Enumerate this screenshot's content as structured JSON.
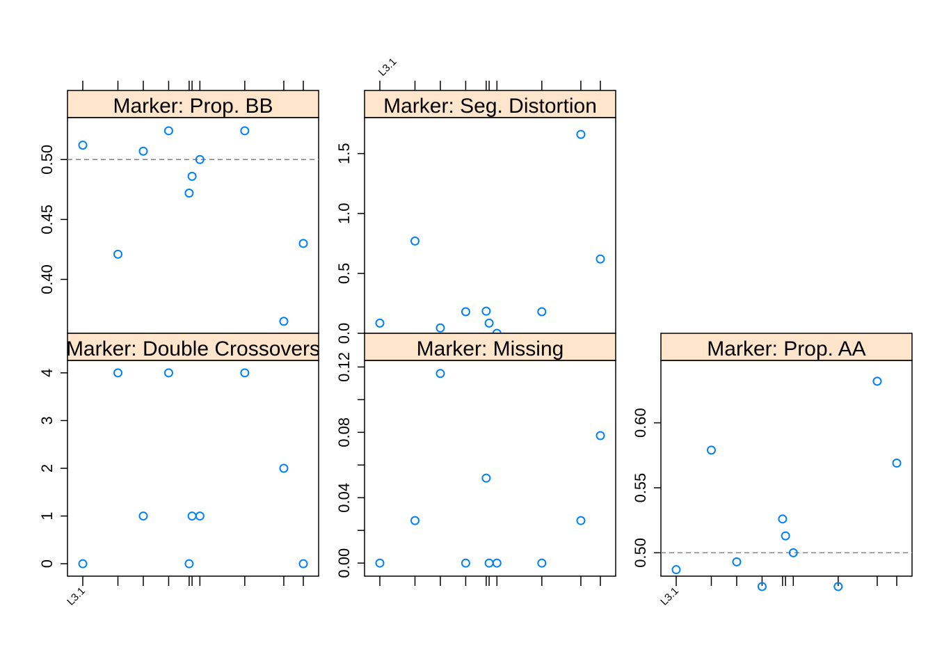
{
  "colors": {
    "point": "#0080ff",
    "strip_fill": "#ffe5cc",
    "reference_line": "#808080",
    "axis": "#000000"
  },
  "chart_data": [
    {
      "type": "scatter",
      "title": "Marker: Prop. BB",
      "x_tick_label": "L3.1",
      "ylim": [
        0.355,
        0.535
      ],
      "yticks": [
        "0.40",
        "0.45",
        "0.50"
      ],
      "yticks_values": [
        0.4,
        0.45,
        0.5
      ],
      "reference_line": 0.5,
      "x": [
        0,
        18,
        31,
        44,
        54.5,
        56,
        60,
        83,
        103,
        113
      ],
      "y": [
        0.512,
        0.421,
        0.507,
        0.524,
        0.472,
        0.486,
        0.5,
        0.524,
        0.365,
        0.43
      ]
    },
    {
      "type": "scatter",
      "title": "Marker: Seg. Distortion",
      "x_tick_label": "L3.1",
      "ylim": [
        0,
        1.8
      ],
      "yticks": [
        "0.0",
        "0.5",
        "1.0",
        "1.5"
      ],
      "yticks_values": [
        0.0,
        0.5,
        1.0,
        1.5
      ],
      "x": [
        0,
        18,
        31,
        44,
        54.5,
        56,
        60,
        83,
        103,
        113
      ],
      "y": [
        0.085,
        0.77,
        0.045,
        0.18,
        0.185,
        0.085,
        0.0,
        0.18,
        1.66,
        0.62
      ]
    },
    {
      "type": "scatter",
      "title": "Marker: Double Crossovers",
      "x_tick_label": "L3.1",
      "ylim": [
        -0.26,
        4.26
      ],
      "yticks": [
        "0",
        "1",
        "2",
        "3",
        "4"
      ],
      "yticks_values": [
        0,
        1,
        2,
        3,
        4
      ],
      "x": [
        0,
        18,
        31,
        44,
        54.5,
        56,
        60,
        83,
        103,
        113
      ],
      "y": [
        0,
        4,
        1,
        4,
        0,
        1,
        1,
        4,
        2,
        0
      ]
    },
    {
      "type": "scatter",
      "title": "Marker: Missing",
      "x_tick_label": "L3.1",
      "ylim": [
        -0.008,
        0.124
      ],
      "yticks": [
        "0.00",
        "0.04",
        "0.08",
        "0.12"
      ],
      "yticks_values": [
        0.0,
        0.04,
        0.08,
        0.12
      ],
      "x": [
        0,
        18,
        31,
        44,
        54.5,
        56,
        60,
        83,
        103,
        113
      ],
      "y": [
        0.0,
        0.026,
        0.116,
        0.0,
        0.052,
        0.0,
        0.0,
        0.0,
        0.026,
        0.078
      ]
    },
    {
      "type": "scatter",
      "title": "Marker: Prop. AA",
      "x_tick_label": "L3.1",
      "ylim": [
        0.482,
        0.648
      ],
      "yticks": [
        "0.50",
        "0.55",
        "0.60"
      ],
      "yticks_values": [
        0.5,
        0.55,
        0.6
      ],
      "reference_line": 0.5,
      "x": [
        0,
        18,
        31,
        44,
        54.5,
        56,
        60,
        83,
        103,
        113
      ],
      "y": [
        0.487,
        0.579,
        0.493,
        0.474,
        0.526,
        0.513,
        0.5,
        0.474,
        0.632,
        0.569
      ]
    }
  ]
}
